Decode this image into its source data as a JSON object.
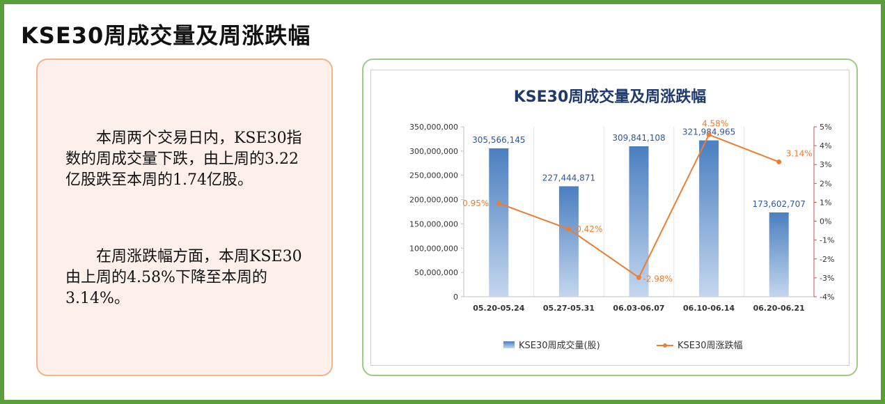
{
  "page_title": "KSE30周成交量及周涨跌幅",
  "text": {
    "paragraph1": "本周两个交易日内，KSE30指数的周成交量下跌，由上周的3.22亿股跌至本周的1.74亿股。",
    "paragraph2": "在周涨跌幅方面，本周KSE30由上周的4.58%下降至本周的3.14%。"
  },
  "colors": {
    "frame": "#5a9e3c",
    "bar_top": "#4a7fc0",
    "bar_bottom": "#c4d6ee",
    "line": "#ed7d31",
    "bar_label": "#2f5597",
    "line_label": "#ed7d31"
  },
  "chart_data": {
    "type": "bar",
    "title": "KSE30周成交量及周涨跌幅",
    "categories": [
      "05.20-05.24",
      "05.27-05.31",
      "06.03-06.07",
      "06.10-06.14",
      "06.20-06.21"
    ],
    "series": [
      {
        "name": "KSE30周成交量(股)",
        "type": "bar",
        "axis": "left",
        "values": [
          305566145,
          227444871,
          309841108,
          321984965,
          173602707
        ],
        "labels": [
          "305,566,145",
          "227,444,871",
          "309,841,108",
          "321,984,965",
          "173,602,707"
        ]
      },
      {
        "name": "KSE30周涨跌幅",
        "type": "line",
        "axis": "right",
        "values": [
          0.95,
          -0.42,
          -2.98,
          4.58,
          3.14
        ],
        "labels": [
          "0.95%",
          "-0.42%",
          "-2.98%",
          "4.58%",
          "3.14%"
        ]
      }
    ],
    "y_left": {
      "range": [
        0,
        350000000
      ],
      "ticks": [
        0,
        50000000,
        100000000,
        150000000,
        200000000,
        250000000,
        300000000,
        350000000
      ],
      "tick_labels": [
        "0",
        "50,000,000",
        "100,000,000",
        "150,000,000",
        "200,000,000",
        "250,000,000",
        "300,000,000",
        "350,000,000"
      ]
    },
    "y_right": {
      "range": [
        -4,
        5
      ],
      "ticks": [
        -4,
        -3,
        -2,
        -1,
        0,
        1,
        2,
        3,
        4,
        5
      ],
      "tick_labels": [
        "-4%",
        "-3%",
        "-2%",
        "-1%",
        "0%",
        "1%",
        "2%",
        "3%",
        "4%",
        "5%"
      ]
    },
    "grid": "vertical",
    "legend": "bottom"
  }
}
